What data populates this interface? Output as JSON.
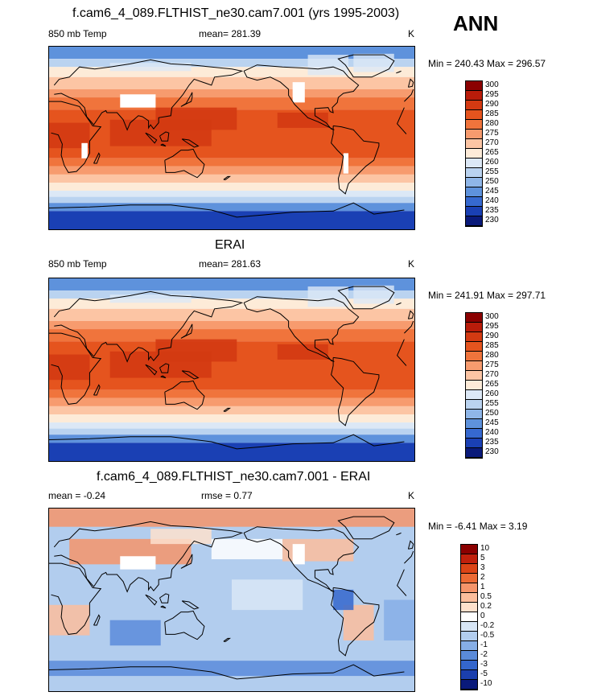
{
  "header": {
    "season": "ANN"
  },
  "panels": [
    {
      "title": "f.cam6_4_089.FLTHIST_ne30.cam7.001 (yrs 1995-2003)",
      "left_label": "850 mb Temp",
      "center_label": "mean= 281.39",
      "units": "K",
      "minmax": "Min = 240.43 Max = 296.57"
    },
    {
      "title": "ERAI",
      "left_label": "850 mb Temp",
      "center_label": "mean= 281.63",
      "units": "K",
      "minmax": "Min = 241.91 Max = 297.71"
    },
    {
      "title": "f.cam6_4_089.FLTHIST_ne30.cam7.001 - ERAI",
      "left_label": "mean =  -0.24",
      "center_label": "rmse =   0.77",
      "units": "K",
      "minmax": "Min =  -6.41 Max =   3.19"
    }
  ],
  "chart_data": [
    {
      "type": "heatmap",
      "title": "f.cam6_4_089.FLTHIST_ne30.cam7.001 (yrs 1995-2003)",
      "variable": "850 mb Temp",
      "units": "K",
      "mean": 281.39,
      "min": 240.43,
      "max": 296.57,
      "colorbar_levels": [
        "300",
        "295",
        "290",
        "285",
        "280",
        "275",
        "270",
        "265",
        "260",
        "255",
        "250",
        "245",
        "240",
        "235",
        "230"
      ],
      "colorbar_colors": [
        "#8b0000",
        "#b91c0a",
        "#d33a12",
        "#e5541e",
        "#f0743c",
        "#f79b6e",
        "#fcc5a4",
        "#fdebd8",
        "#dce8f6",
        "#bad3f0",
        "#8fb6e8",
        "#5e92dc",
        "#3669d0",
        "#1a40b4",
        "#0a1a7a"
      ]
    },
    {
      "type": "heatmap",
      "title": "ERAI",
      "variable": "850 mb Temp",
      "units": "K",
      "mean": 281.63,
      "min": 241.91,
      "max": 297.71,
      "colorbar_levels": [
        "300",
        "295",
        "290",
        "285",
        "280",
        "275",
        "270",
        "265",
        "260",
        "255",
        "250",
        "245",
        "240",
        "235",
        "230"
      ],
      "colorbar_colors": [
        "#8b0000",
        "#b91c0a",
        "#d33a12",
        "#e5541e",
        "#f0743c",
        "#f79b6e",
        "#fcc5a4",
        "#fdebd8",
        "#dce8f6",
        "#bad3f0",
        "#8fb6e8",
        "#5e92dc",
        "#3669d0",
        "#1a40b4",
        "#0a1a7a"
      ]
    },
    {
      "type": "heatmap",
      "title": "f.cam6_4_089.FLTHIST_ne30.cam7.001 - ERAI",
      "units": "K",
      "mean": -0.24,
      "rmse": 0.77,
      "min": -6.41,
      "max": 3.19,
      "colorbar_levels": [
        "10",
        "5",
        "3",
        "2",
        "1",
        "0.5",
        "0.2",
        "0",
        "-0.2",
        "-0.5",
        "-1",
        "-2",
        "-3",
        "-5",
        "-10"
      ],
      "colorbar_colors": [
        "#8b0000",
        "#c0200c",
        "#dc4416",
        "#ec6a34",
        "#f5946a",
        "#fbbd9c",
        "#fde0cc",
        "#ffffff",
        "#d8e6f6",
        "#b2cdee",
        "#86aee6",
        "#5a8bda",
        "#3466cc",
        "#1b3fae",
        "#0a1a7a"
      ]
    }
  ]
}
